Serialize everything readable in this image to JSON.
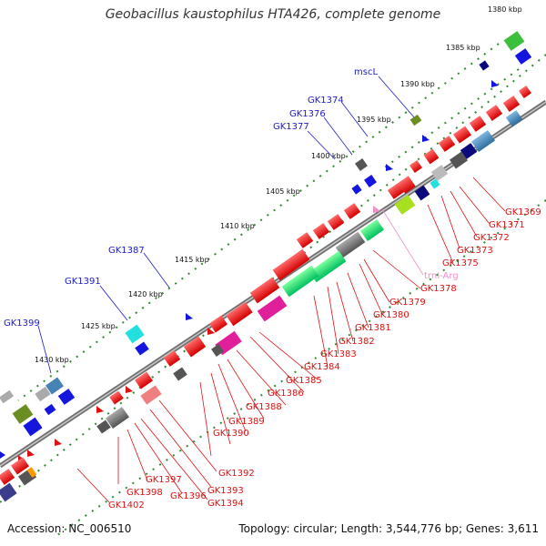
{
  "title": "Geobacillus kaustophilus HTA426, complete genome",
  "footer": {
    "accession": "Accession: NC_006510",
    "summary": "Topology: circular; Length: 3,544,776 bp; Genes: 3,611"
  },
  "kbp_labels": [
    "1380 kbp",
    "1385 kbp",
    "1390 kbp",
    "1395 kbp",
    "1400 kbp",
    "1405 kbp",
    "1410 kbp",
    "1415 kbp",
    "1420 kbp",
    "1425 kbp",
    "1430 kbp"
  ],
  "top_labels": [
    "mscL",
    "GK1374",
    "GK1376",
    "GK1377",
    "GK1387",
    "GK1391",
    "GK1399"
  ],
  "bottom_labels": [
    "GK1369",
    "GK1371",
    "GK1372",
    "GK1373",
    "GK1375",
    "trnI-Arg",
    "GK1378",
    "GK1379",
    "GK1380",
    "GK1381",
    "GK1382",
    "GK1383",
    "GK1384",
    "GK1385",
    "GK1386",
    "GK1388",
    "GK1389",
    "GK1390",
    "GK1392",
    "GK1393",
    "GK1394",
    "GK1396",
    "GK1397",
    "GK1398",
    "GK1402"
  ],
  "colors": {
    "backbone": "#6e6e6e",
    "dots": "#2e8b2e",
    "label_blue": "#1a1acc",
    "label_red": "#e01010",
    "label_pink": "#f08fc8"
  }
}
